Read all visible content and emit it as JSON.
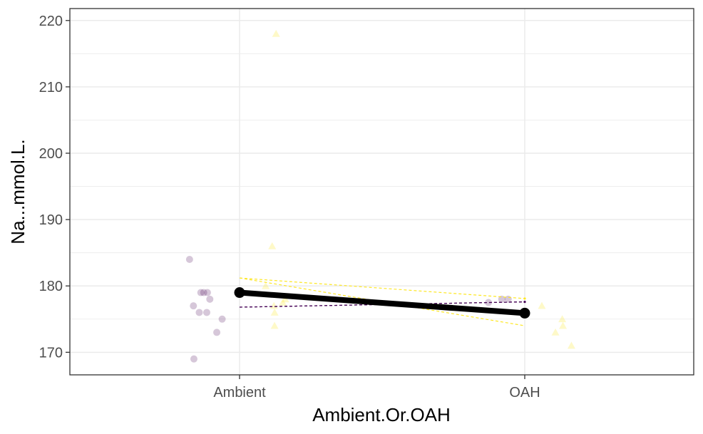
{
  "chart_data": {
    "type": "scatter",
    "xlabel": "Ambient.Or.OAH",
    "ylabel": "Na...mmol.L.",
    "categories": [
      "Ambient",
      "OAH"
    ],
    "ylim": [
      166.6,
      221.8
    ],
    "yticks": [
      170,
      180,
      190,
      200,
      210,
      220
    ],
    "grid": true,
    "legend": "none",
    "series": [
      {
        "color": "#440154",
        "marker": "circle",
        "points": [
          {
            "x": "Ambient",
            "y": 184
          },
          {
            "x": "Ambient",
            "y": 179
          },
          {
            "x": "Ambient",
            "y": 179
          },
          {
            "x": "Ambient",
            "y": 179
          },
          {
            "x": "Ambient",
            "y": 178
          },
          {
            "x": "Ambient",
            "y": 177
          },
          {
            "x": "Ambient",
            "y": 176
          },
          {
            "x": "Ambient",
            "y": 176
          },
          {
            "x": "Ambient",
            "y": 175
          },
          {
            "x": "Ambient",
            "y": 173
          },
          {
            "x": "Ambient",
            "y": 169
          },
          {
            "x": "OAH",
            "y": 178
          },
          {
            "x": "OAH",
            "y": 178
          },
          {
            "x": "OAH",
            "y": 177.5
          }
        ],
        "interval": {
          "Ambient": [
            176.8,
            176.8
          ],
          "OAH": [
            177.6,
            177.6
          ]
        }
      },
      {
        "color": "#FDE725",
        "marker": "triangle",
        "points": [
          {
            "x": "Ambient",
            "y": 218
          },
          {
            "x": "Ambient",
            "y": 186
          },
          {
            "x": "Ambient",
            "y": 180
          },
          {
            "x": "Ambient",
            "y": 178
          },
          {
            "x": "Ambient",
            "y": 177.5
          },
          {
            "x": "Ambient",
            "y": 177
          },
          {
            "x": "Ambient",
            "y": 176
          },
          {
            "x": "Ambient",
            "y": 174
          },
          {
            "x": "OAH",
            "y": 177
          },
          {
            "x": "OAH",
            "y": 175
          },
          {
            "x": "OAH",
            "y": 174
          },
          {
            "x": "OAH",
            "y": 173
          },
          {
            "x": "OAH",
            "y": 171
          }
        ],
        "interval": {
          "Ambient": [
            181.2,
            181.2
          ],
          "OAH": [
            178.1,
            174.0
          ]
        }
      }
    ],
    "mean_line": {
      "color": "#000000",
      "values": [
        {
          "x": "Ambient",
          "y": 179
        },
        {
          "x": "OAH",
          "y": 175.9
        }
      ]
    }
  }
}
